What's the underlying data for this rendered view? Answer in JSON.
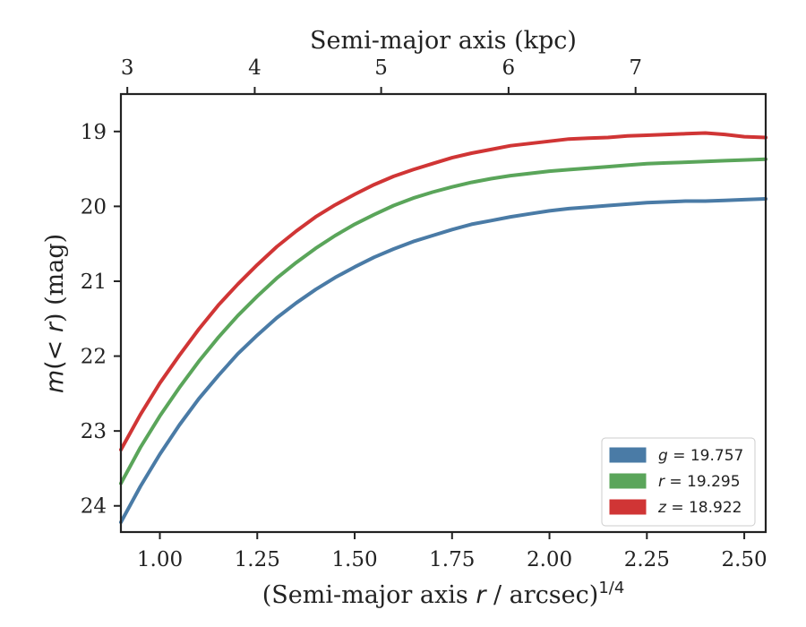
{
  "chart_data": {
    "type": "line",
    "xlabel_parts": [
      "(Semi-major axis ",
      "r",
      " / arcsec)",
      "1/4"
    ],
    "ylabel_parts": [
      "m",
      "(< ",
      "r",
      ") (mag)"
    ],
    "top_xlabel": "Semi-major axis (kpc)",
    "xlim": [
      0.9,
      2.555
    ],
    "ylim": [
      24.35,
      18.5
    ],
    "y_inverted": true,
    "x_ticks": [
      1.0,
      1.25,
      1.5,
      1.75,
      2.0,
      2.25,
      2.5
    ],
    "x_tick_labels": [
      "1.00",
      "1.25",
      "1.50",
      "1.75",
      "2.00",
      "2.25",
      "2.50"
    ],
    "y_ticks": [
      19,
      20,
      21,
      22,
      23,
      24
    ],
    "y_tick_labels": [
      "19",
      "20",
      "21",
      "22",
      "23",
      "24"
    ],
    "top_ticks": [
      3,
      4,
      5,
      6,
      7
    ],
    "top_tick_labels": [
      "3",
      "4",
      "5",
      "6",
      "7"
    ],
    "top_tick_positions_x": [
      0.9165,
      1.2435,
      1.568,
      1.895,
      2.221
    ],
    "grid": false,
    "legend_position": "lower right",
    "series": [
      {
        "name": "g",
        "label_value": "19.757",
        "color": "#4a7ba6",
        "x": [
          0.9,
          0.95,
          1.0,
          1.05,
          1.1,
          1.15,
          1.2,
          1.25,
          1.3,
          1.35,
          1.4,
          1.45,
          1.5,
          1.55,
          1.6,
          1.65,
          1.7,
          1.75,
          1.8,
          1.85,
          1.9,
          1.95,
          2.0,
          2.05,
          2.1,
          2.15,
          2.2,
          2.25,
          2.3,
          2.35,
          2.4,
          2.45,
          2.5,
          2.555
        ],
        "y": [
          24.22,
          23.74,
          23.31,
          22.92,
          22.57,
          22.26,
          21.97,
          21.72,
          21.49,
          21.29,
          21.11,
          20.95,
          20.81,
          20.68,
          20.57,
          20.47,
          20.39,
          20.31,
          20.24,
          20.19,
          20.14,
          20.1,
          20.06,
          20.03,
          20.01,
          19.99,
          19.97,
          19.95,
          19.94,
          19.93,
          19.93,
          19.92,
          19.91,
          19.9
        ]
      },
      {
        "name": "r",
        "label_value": "19.295",
        "color": "#5aa55a",
        "x": [
          0.9,
          0.95,
          1.0,
          1.05,
          1.1,
          1.15,
          1.2,
          1.25,
          1.3,
          1.35,
          1.4,
          1.45,
          1.5,
          1.55,
          1.6,
          1.65,
          1.7,
          1.75,
          1.8,
          1.85,
          1.9,
          1.95,
          2.0,
          2.05,
          2.1,
          2.15,
          2.2,
          2.25,
          2.3,
          2.35,
          2.4,
          2.45,
          2.5,
          2.555
        ],
        "y": [
          23.7,
          23.22,
          22.8,
          22.42,
          22.07,
          21.75,
          21.46,
          21.2,
          20.96,
          20.75,
          20.56,
          20.39,
          20.24,
          20.11,
          19.99,
          19.89,
          19.81,
          19.74,
          19.68,
          19.63,
          19.59,
          19.56,
          19.53,
          19.51,
          19.49,
          19.47,
          19.45,
          19.43,
          19.42,
          19.41,
          19.4,
          19.39,
          19.38,
          19.37
        ]
      },
      {
        "name": "z",
        "label_value": "18.922",
        "color": "#d03535",
        "x": [
          0.9,
          0.95,
          1.0,
          1.05,
          1.1,
          1.15,
          1.2,
          1.25,
          1.3,
          1.35,
          1.4,
          1.45,
          1.5,
          1.55,
          1.6,
          1.65,
          1.7,
          1.75,
          1.8,
          1.85,
          1.9,
          1.95,
          2.0,
          2.05,
          2.1,
          2.15,
          2.2,
          2.25,
          2.3,
          2.35,
          2.4,
          2.45,
          2.5,
          2.555
        ],
        "y": [
          23.25,
          22.78,
          22.36,
          21.99,
          21.64,
          21.32,
          21.04,
          20.78,
          20.54,
          20.33,
          20.14,
          19.98,
          19.84,
          19.71,
          19.6,
          19.51,
          19.43,
          19.35,
          19.29,
          19.24,
          19.19,
          19.16,
          19.13,
          19.1,
          19.09,
          19.08,
          19.06,
          19.05,
          19.04,
          19.03,
          19.02,
          19.04,
          19.07,
          19.08
        ]
      }
    ]
  }
}
